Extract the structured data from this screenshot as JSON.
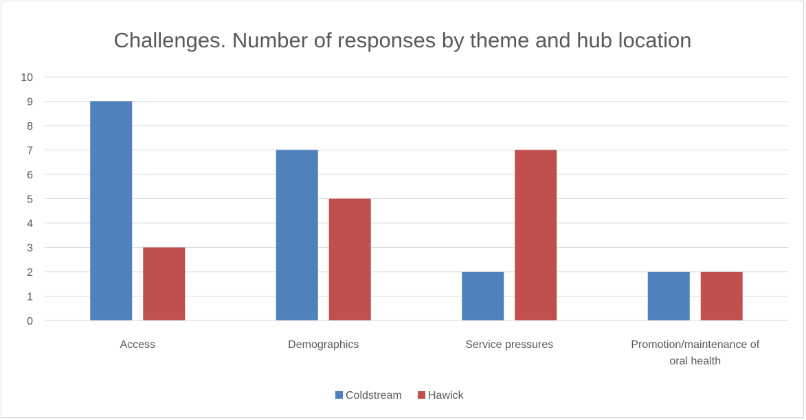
{
  "chart_data": {
    "type": "bar",
    "title": "Challenges. Number of responses by theme and hub location",
    "categories": [
      [
        "Access"
      ],
      [
        "Demographics"
      ],
      [
        "Service pressures"
      ],
      [
        "Promotion/maintenance of",
        "oral health"
      ]
    ],
    "series": [
      {
        "name": "Coldstream",
        "color": "#4f81bd",
        "values": [
          9,
          7,
          2,
          2
        ]
      },
      {
        "name": "Hawick",
        "color": "#c0504d",
        "values": [
          3,
          5,
          7,
          2
        ]
      }
    ],
    "ylim": [
      0,
      10
    ],
    "yticks": [
      0,
      1,
      2,
      3,
      4,
      5,
      6,
      7,
      8,
      9,
      10
    ],
    "grid": true,
    "legend_position": "bottom"
  }
}
